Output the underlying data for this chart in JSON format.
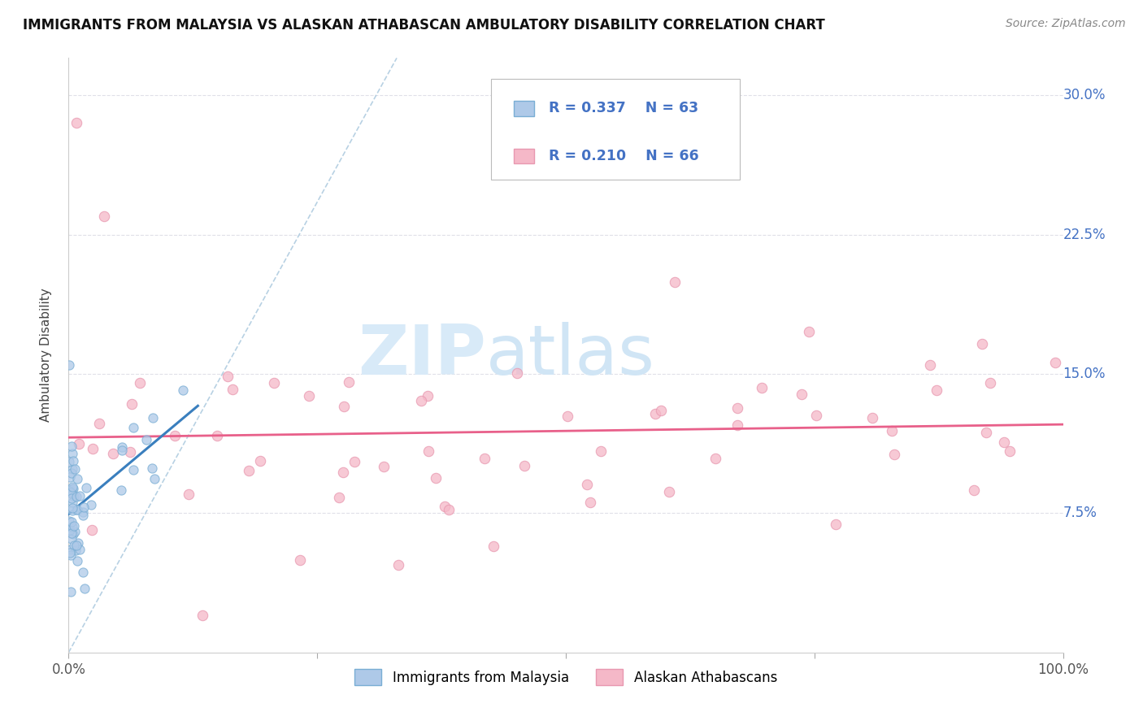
{
  "title": "IMMIGRANTS FROM MALAYSIA VS ALASKAN ATHABASCAN AMBULATORY DISABILITY CORRELATION CHART",
  "source": "Source: ZipAtlas.com",
  "ylabel": "Ambulatory Disability",
  "xlim": [
    0.0,
    1.0
  ],
  "ylim": [
    0.0,
    0.32
  ],
  "ytick_labels": [
    "7.5%",
    "15.0%",
    "22.5%",
    "30.0%"
  ],
  "ytick_positions": [
    0.075,
    0.15,
    0.225,
    0.3
  ],
  "xtick_positions": [
    0.0,
    0.25,
    0.5,
    0.75,
    1.0
  ],
  "xtick_labels": [
    "0.0%",
    "",
    "",
    "",
    "100.0%"
  ],
  "legend_r1": "R = 0.337",
  "legend_n1": "N = 63",
  "legend_r2": "R = 0.210",
  "legend_n2": "N = 66",
  "color_blue_fill": "#aec9e8",
  "color_blue_edge": "#7aaed4",
  "color_pink_fill": "#f5b8c8",
  "color_pink_edge": "#e898b0",
  "color_blue_trend": "#3a7fbe",
  "color_pink_trend": "#e8608a",
  "color_diag": "#b0cce0",
  "color_grid": "#e0e0e8",
  "color_tick_blue": "#4472c4",
  "watermark_zip_color": "#c8dff0",
  "watermark_atlas_color": "#c8ddf0",
  "title_fontsize": 12,
  "source_fontsize": 10,
  "tick_fontsize": 12,
  "ylabel_fontsize": 11
}
